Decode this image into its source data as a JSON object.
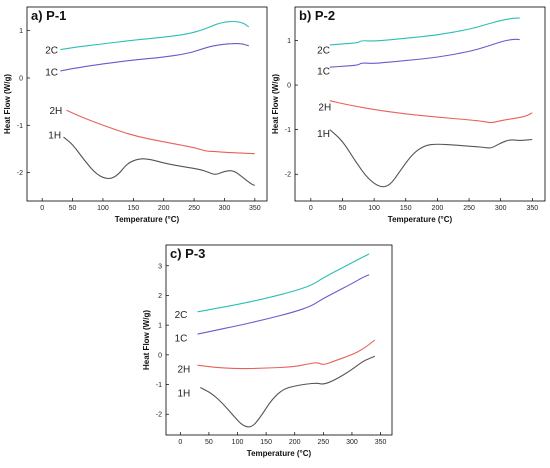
{
  "chart_data": [
    {
      "type": "line",
      "title": "a) P-1",
      "xlabel": "Temperature (°C)",
      "ylabel": "Heat Flow (W/g)",
      "xlim": [
        -25,
        370
      ],
      "ylim": [
        -2.6,
        1.5
      ],
      "xticks": [
        0,
        50,
        100,
        150,
        200,
        250,
        300,
        350
      ],
      "yticks": [
        -2,
        -1,
        0,
        1
      ],
      "grid": false,
      "legend": "none",
      "series": [
        {
          "name": "2C",
          "color": "#2bbfb5",
          "x": [
            30,
            60,
            100,
            150,
            200,
            240,
            265,
            280,
            290,
            300,
            315,
            330,
            340
          ],
          "y": [
            0.6,
            0.66,
            0.72,
            0.8,
            0.86,
            0.93,
            1.02,
            1.1,
            1.15,
            1.18,
            1.2,
            1.17,
            1.08
          ]
        },
        {
          "name": "1C",
          "color": "#6a5acd",
          "x": [
            30,
            60,
            100,
            150,
            200,
            240,
            260,
            275,
            290,
            305,
            320,
            330,
            340
          ],
          "y": [
            0.15,
            0.22,
            0.3,
            0.38,
            0.44,
            0.52,
            0.6,
            0.66,
            0.7,
            0.72,
            0.73,
            0.72,
            0.68
          ]
        },
        {
          "name": "2H",
          "color": "#e8615a",
          "x": [
            40,
            60,
            100,
            150,
            200,
            250,
            270,
            280,
            300,
            330,
            350
          ],
          "y": [
            -0.68,
            -0.8,
            -1.0,
            -1.22,
            -1.35,
            -1.47,
            -1.55,
            -1.55,
            -1.57,
            -1.59,
            -1.6
          ]
        },
        {
          "name": "1H",
          "color": "#555555",
          "x": [
            35,
            50,
            70,
            90,
            110,
            125,
            140,
            160,
            180,
            200,
            230,
            260,
            275,
            285,
            300,
            315,
            330,
            345,
            350
          ],
          "y": [
            -1.25,
            -1.4,
            -1.75,
            -2.05,
            -2.15,
            -2.05,
            -1.8,
            -1.7,
            -1.72,
            -1.8,
            -1.87,
            -1.93,
            -2.0,
            -2.05,
            -1.97,
            -1.95,
            -2.1,
            -2.25,
            -2.27
          ]
        }
      ]
    },
    {
      "type": "line",
      "title": "b) P-2",
      "xlabel": "Temperature (°C)",
      "ylabel": "Heat Flow (W/g)",
      "xlim": [
        -25,
        370
      ],
      "ylim": [
        -2.6,
        1.75
      ],
      "xticks": [
        0,
        50,
        100,
        150,
        200,
        250,
        300,
        350
      ],
      "yticks": [
        -2,
        -1,
        0,
        1
      ],
      "grid": false,
      "legend": "none",
      "series": [
        {
          "name": "2C",
          "color": "#2bbfb5",
          "x": [
            30,
            60,
            75,
            80,
            100,
            150,
            200,
            250,
            275,
            300,
            320,
            330
          ],
          "y": [
            0.9,
            0.93,
            0.95,
            1.0,
            0.98,
            1.05,
            1.12,
            1.25,
            1.35,
            1.45,
            1.5,
            1.5
          ]
        },
        {
          "name": "1C",
          "color": "#6a5acd",
          "x": [
            30,
            60,
            75,
            80,
            100,
            150,
            200,
            250,
            275,
            300,
            320,
            330
          ],
          "y": [
            0.4,
            0.43,
            0.45,
            0.5,
            0.48,
            0.55,
            0.62,
            0.75,
            0.85,
            0.97,
            1.03,
            1.02
          ]
        },
        {
          "name": "2H",
          "color": "#e8615a",
          "x": [
            30,
            60,
            100,
            150,
            200,
            250,
            275,
            285,
            300,
            320,
            340,
            350
          ],
          "y": [
            -0.35,
            -0.45,
            -0.55,
            -0.65,
            -0.72,
            -0.78,
            -0.82,
            -0.85,
            -0.8,
            -0.75,
            -0.7,
            -0.62
          ]
        },
        {
          "name": "1H",
          "color": "#555555",
          "x": [
            30,
            50,
            70,
            90,
            110,
            125,
            140,
            160,
            180,
            200,
            230,
            260,
            275,
            285,
            300,
            315,
            330,
            350
          ],
          "y": [
            -1.0,
            -1.25,
            -1.7,
            -2.1,
            -2.3,
            -2.25,
            -1.95,
            -1.55,
            -1.35,
            -1.32,
            -1.35,
            -1.38,
            -1.4,
            -1.42,
            -1.3,
            -1.22,
            -1.25,
            -1.22
          ]
        }
      ]
    },
    {
      "type": "line",
      "title": "c) P-3",
      "xlabel": "Temperature (°C)",
      "ylabel": "Heat Flow (W/g)",
      "xlim": [
        -25,
        370
      ],
      "ylim": [
        -2.7,
        3.7
      ],
      "xticks": [
        0,
        50,
        100,
        150,
        200,
        250,
        300,
        350
      ],
      "yticks": [
        -2,
        -1,
        0,
        1,
        2,
        3
      ],
      "grid": false,
      "legend": "none",
      "series": [
        {
          "name": "2C",
          "color": "#2bbfb5",
          "x": [
            30,
            60,
            100,
            150,
            200,
            230,
            250,
            270,
            300,
            320,
            330
          ],
          "y": [
            1.45,
            1.55,
            1.7,
            1.9,
            2.15,
            2.35,
            2.6,
            2.8,
            3.1,
            3.3,
            3.4
          ]
        },
        {
          "name": "1C",
          "color": "#6a5acd",
          "x": [
            30,
            60,
            100,
            150,
            200,
            230,
            250,
            270,
            300,
            320,
            330
          ],
          "y": [
            0.7,
            0.82,
            0.98,
            1.2,
            1.45,
            1.65,
            1.9,
            2.1,
            2.4,
            2.62,
            2.7
          ]
        },
        {
          "name": "2H",
          "color": "#e8615a",
          "x": [
            30,
            60,
            100,
            150,
            200,
            225,
            240,
            250,
            270,
            300,
            320,
            340
          ],
          "y": [
            -0.35,
            -0.42,
            -0.47,
            -0.45,
            -0.4,
            -0.3,
            -0.25,
            -0.35,
            -0.2,
            0.0,
            0.2,
            0.5
          ]
        },
        {
          "name": "1H",
          "color": "#555555",
          "x": [
            35,
            55,
            75,
            95,
            110,
            125,
            140,
            160,
            180,
            200,
            220,
            240,
            250,
            270,
            300,
            320,
            340
          ],
          "y": [
            -1.1,
            -1.3,
            -1.65,
            -2.1,
            -2.4,
            -2.45,
            -2.1,
            -1.5,
            -1.15,
            -1.05,
            -0.98,
            -0.95,
            -1.0,
            -0.85,
            -0.5,
            -0.2,
            -0.05
          ]
        }
      ]
    }
  ]
}
